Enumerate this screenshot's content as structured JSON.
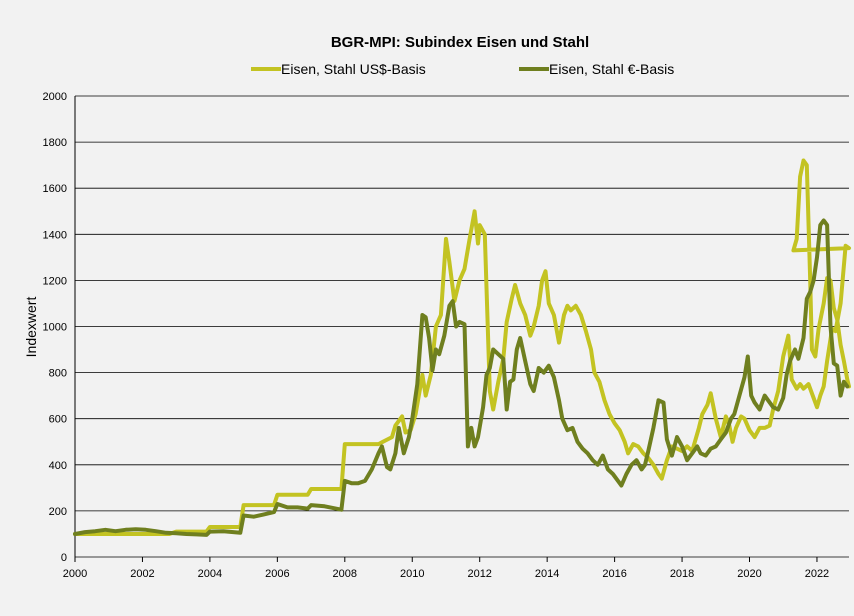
{
  "chart_data": {
    "type": "line",
    "title": "BGR-MPI:  Subindex Eisen und Stahl",
    "xlabel": "",
    "ylabel": "Indexwert",
    "xlim": [
      2000,
      2022.95
    ],
    "ylim": [
      0,
      2000
    ],
    "x_ticks": [
      "2000",
      "2002",
      "2004",
      "2006",
      "2008",
      "2010",
      "2012",
      "2014",
      "2016",
      "2018",
      "2020",
      "2022"
    ],
    "y_ticks": [
      "0",
      "200",
      "400",
      "600",
      "800",
      "1000",
      "1200",
      "1400",
      "1600",
      "1800",
      "2000"
    ],
    "grid": true,
    "legend": "top-center",
    "series": [
      {
        "name": "Eisen, Stahl US$-Basis",
        "color": "#c3c322",
        "points": [
          [
            2000.0,
            100
          ],
          [
            2001.0,
            100
          ],
          [
            2002.0,
            100
          ],
          [
            2002.8,
            100
          ],
          [
            2003.0,
            110
          ],
          [
            2003.9,
            110
          ],
          [
            2004.0,
            130
          ],
          [
            2004.9,
            130
          ],
          [
            2005.0,
            225
          ],
          [
            2005.9,
            225
          ],
          [
            2006.0,
            270
          ],
          [
            2006.9,
            270
          ],
          [
            2007.0,
            295
          ],
          [
            2007.9,
            295
          ],
          [
            2008.0,
            490
          ],
          [
            2008.9,
            490
          ],
          [
            2009.0,
            490
          ],
          [
            2009.4,
            520
          ],
          [
            2009.5,
            570
          ],
          [
            2009.7,
            610
          ],
          [
            2009.8,
            540
          ],
          [
            2009.95,
            550
          ],
          [
            2010.1,
            620
          ],
          [
            2010.3,
            790
          ],
          [
            2010.4,
            700
          ],
          [
            2010.55,
            790
          ],
          [
            2010.7,
            1000
          ],
          [
            2010.85,
            1050
          ],
          [
            2011.0,
            1380
          ],
          [
            2011.1,
            1280
          ],
          [
            2011.25,
            1110
          ],
          [
            2011.4,
            1200
          ],
          [
            2011.55,
            1250
          ],
          [
            2011.7,
            1380
          ],
          [
            2011.85,
            1500
          ],
          [
            2011.95,
            1360
          ],
          [
            2012.0,
            1440
          ],
          [
            2012.15,
            1400
          ],
          [
            2012.3,
            720
          ],
          [
            2012.4,
            640
          ],
          [
            2012.55,
            760
          ],
          [
            2012.7,
            860
          ],
          [
            2012.8,
            1020
          ],
          [
            2012.95,
            1120
          ],
          [
            2013.05,
            1180
          ],
          [
            2013.2,
            1100
          ],
          [
            2013.35,
            1050
          ],
          [
            2013.5,
            960
          ],
          [
            2013.6,
            1000
          ],
          [
            2013.75,
            1090
          ],
          [
            2013.85,
            1200
          ],
          [
            2013.95,
            1240
          ],
          [
            2014.05,
            1100
          ],
          [
            2014.2,
            1050
          ],
          [
            2014.35,
            930
          ],
          [
            2014.5,
            1050
          ],
          [
            2014.6,
            1090
          ],
          [
            2014.7,
            1070
          ],
          [
            2014.85,
            1090
          ],
          [
            2015.0,
            1050
          ],
          [
            2015.15,
            980
          ],
          [
            2015.3,
            900
          ],
          [
            2015.4,
            800
          ],
          [
            2015.55,
            760
          ],
          [
            2015.7,
            680
          ],
          [
            2015.85,
            620
          ],
          [
            2016.0,
            580
          ],
          [
            2016.15,
            550
          ],
          [
            2016.3,
            500
          ],
          [
            2016.4,
            450
          ],
          [
            2016.55,
            490
          ],
          [
            2016.7,
            480
          ],
          [
            2016.85,
            450
          ],
          [
            2017.0,
            430
          ],
          [
            2017.15,
            400
          ],
          [
            2017.3,
            360
          ],
          [
            2017.4,
            340
          ],
          [
            2017.55,
            420
          ],
          [
            2017.7,
            480
          ],
          [
            2017.85,
            470
          ],
          [
            2018.0,
            460
          ],
          [
            2018.15,
            480
          ],
          [
            2018.3,
            460
          ],
          [
            2018.5,
            560
          ],
          [
            2018.6,
            620
          ],
          [
            2018.75,
            660
          ],
          [
            2018.85,
            710
          ],
          [
            2019.0,
            600
          ],
          [
            2019.15,
            520
          ],
          [
            2019.3,
            610
          ],
          [
            2019.4,
            570
          ],
          [
            2019.5,
            500
          ],
          [
            2019.6,
            560
          ],
          [
            2019.75,
            610
          ],
          [
            2019.85,
            600
          ],
          [
            2020.0,
            550
          ],
          [
            2020.15,
            520
          ],
          [
            2020.3,
            560
          ],
          [
            2020.45,
            560
          ],
          [
            2020.6,
            570
          ],
          [
            2020.7,
            640
          ],
          [
            2020.85,
            720
          ],
          [
            2021.0,
            870
          ],
          [
            2021.15,
            960
          ],
          [
            2021.25,
            770
          ],
          [
            2021.4,
            730
          ],
          [
            2021.5,
            750
          ],
          [
            2021.6,
            730
          ],
          [
            2021.75,
            750
          ],
          [
            2021.85,
            710
          ],
          [
            2022.0,
            650
          ],
          [
            2022.1,
            700
          ],
          [
            2022.2,
            740
          ],
          [
            2022.3,
            850
          ],
          [
            2022.45,
            990
          ],
          [
            2022.55,
            980
          ],
          [
            2022.7,
            1100
          ],
          [
            2022.85,
            1350
          ],
          [
            2022.95,
            1340
          ],
          [
            2021.3,
            1330
          ],
          [
            2021.4,
            1380
          ],
          [
            2021.5,
            1650
          ],
          [
            2021.6,
            1720
          ],
          [
            2021.7,
            1700
          ],
          [
            2021.8,
            1200
          ],
          [
            2021.85,
            900
          ],
          [
            2021.95,
            870
          ],
          [
            2022.05,
            990
          ],
          [
            2022.2,
            1100
          ],
          [
            2022.3,
            1210
          ],
          [
            2022.4,
            1200
          ],
          [
            2022.5,
            1080
          ],
          [
            2022.6,
            1030
          ],
          [
            2022.7,
            920
          ],
          [
            2022.8,
            850
          ],
          [
            2022.9,
            770
          ],
          [
            2022.95,
            740
          ]
        ]
      },
      {
        "name": "Eisen, Stahl €-Basis",
        "color": "#6f7f1f",
        "points": [
          [
            2000.0,
            100
          ],
          [
            2000.3,
            108
          ],
          [
            2000.6,
            112
          ],
          [
            2000.9,
            118
          ],
          [
            2001.2,
            112
          ],
          [
            2001.5,
            118
          ],
          [
            2001.8,
            120
          ],
          [
            2002.1,
            118
          ],
          [
            2002.4,
            112
          ],
          [
            2002.7,
            105
          ],
          [
            2003.0,
            103
          ],
          [
            2003.3,
            100
          ],
          [
            2003.6,
            98
          ],
          [
            2003.9,
            96
          ],
          [
            2004.0,
            110
          ],
          [
            2004.4,
            112
          ],
          [
            2004.9,
            105
          ],
          [
            2005.0,
            180
          ],
          [
            2005.3,
            175
          ],
          [
            2005.6,
            185
          ],
          [
            2005.9,
            195
          ],
          [
            2006.0,
            230
          ],
          [
            2006.3,
            215
          ],
          [
            2006.6,
            215
          ],
          [
            2006.9,
            210
          ],
          [
            2007.0,
            225
          ],
          [
            2007.4,
            220
          ],
          [
            2007.9,
            205
          ],
          [
            2008.0,
            330
          ],
          [
            2008.2,
            320
          ],
          [
            2008.4,
            320
          ],
          [
            2008.6,
            330
          ],
          [
            2008.8,
            380
          ],
          [
            2009.0,
            450
          ],
          [
            2009.1,
            480
          ],
          [
            2009.25,
            390
          ],
          [
            2009.35,
            380
          ],
          [
            2009.5,
            450
          ],
          [
            2009.6,
            560
          ],
          [
            2009.75,
            450
          ],
          [
            2009.9,
            520
          ],
          [
            2010.0,
            600
          ],
          [
            2010.15,
            750
          ],
          [
            2010.3,
            1050
          ],
          [
            2010.4,
            1040
          ],
          [
            2010.5,
            950
          ],
          [
            2010.6,
            810
          ],
          [
            2010.7,
            900
          ],
          [
            2010.8,
            880
          ],
          [
            2010.95,
            960
          ],
          [
            2011.1,
            1090
          ],
          [
            2011.2,
            1110
          ],
          [
            2011.3,
            1000
          ],
          [
            2011.4,
            1020
          ],
          [
            2011.55,
            1010
          ],
          [
            2011.65,
            480
          ],
          [
            2011.75,
            560
          ],
          [
            2011.85,
            480
          ],
          [
            2011.95,
            520
          ],
          [
            2012.1,
            650
          ],
          [
            2012.2,
            790
          ],
          [
            2012.3,
            820
          ],
          [
            2012.4,
            900
          ],
          [
            2012.55,
            880
          ],
          [
            2012.7,
            860
          ],
          [
            2012.8,
            640
          ],
          [
            2012.9,
            760
          ],
          [
            2013.0,
            770
          ],
          [
            2013.1,
            900
          ],
          [
            2013.2,
            950
          ],
          [
            2013.35,
            850
          ],
          [
            2013.5,
            750
          ],
          [
            2013.6,
            720
          ],
          [
            2013.75,
            820
          ],
          [
            2013.9,
            800
          ],
          [
            2014.05,
            830
          ],
          [
            2014.2,
            780
          ],
          [
            2014.35,
            680
          ],
          [
            2014.45,
            600
          ],
          [
            2014.6,
            550
          ],
          [
            2014.75,
            560
          ],
          [
            2014.9,
            500
          ],
          [
            2015.05,
            470
          ],
          [
            2015.2,
            450
          ],
          [
            2015.35,
            420
          ],
          [
            2015.5,
            400
          ],
          [
            2015.65,
            440
          ],
          [
            2015.8,
            380
          ],
          [
            2015.95,
            360
          ],
          [
            2016.1,
            330
          ],
          [
            2016.2,
            310
          ],
          [
            2016.35,
            360
          ],
          [
            2016.5,
            400
          ],
          [
            2016.65,
            420
          ],
          [
            2016.8,
            380
          ],
          [
            2016.9,
            400
          ],
          [
            2017.0,
            460
          ],
          [
            2017.15,
            560
          ],
          [
            2017.3,
            680
          ],
          [
            2017.45,
            670
          ],
          [
            2017.55,
            510
          ],
          [
            2017.7,
            440
          ],
          [
            2017.85,
            520
          ],
          [
            2018.0,
            480
          ],
          [
            2018.15,
            420
          ],
          [
            2018.3,
            450
          ],
          [
            2018.45,
            480
          ],
          [
            2018.55,
            450
          ],
          [
            2018.7,
            440
          ],
          [
            2018.85,
            470
          ],
          [
            2019.0,
            480
          ],
          [
            2019.15,
            510
          ],
          [
            2019.3,
            540
          ],
          [
            2019.45,
            600
          ],
          [
            2019.55,
            620
          ],
          [
            2019.7,
            700
          ],
          [
            2019.85,
            780
          ],
          [
            2019.95,
            870
          ],
          [
            2020.05,
            700
          ],
          [
            2020.15,
            670
          ],
          [
            2020.3,
            640
          ],
          [
            2020.45,
            700
          ],
          [
            2020.55,
            680
          ],
          [
            2020.7,
            650
          ],
          [
            2020.85,
            640
          ],
          [
            2021.0,
            690
          ],
          [
            2021.1,
            790
          ],
          [
            2021.2,
            850
          ],
          [
            2021.35,
            900
          ],
          [
            2021.45,
            860
          ],
          [
            2021.6,
            950
          ],
          [
            2021.7,
            1120
          ],
          [
            2021.8,
            1150
          ],
          [
            2021.9,
            1200
          ],
          [
            2022.0,
            1300
          ],
          [
            2022.1,
            1440
          ],
          [
            2022.2,
            1460
          ],
          [
            2022.3,
            1440
          ],
          [
            2022.4,
            1000
          ],
          [
            2022.5,
            840
          ],
          [
            2022.6,
            830
          ],
          [
            2022.7,
            700
          ],
          [
            2022.8,
            760
          ],
          [
            2022.9,
            740
          ]
        ]
      }
    ]
  }
}
